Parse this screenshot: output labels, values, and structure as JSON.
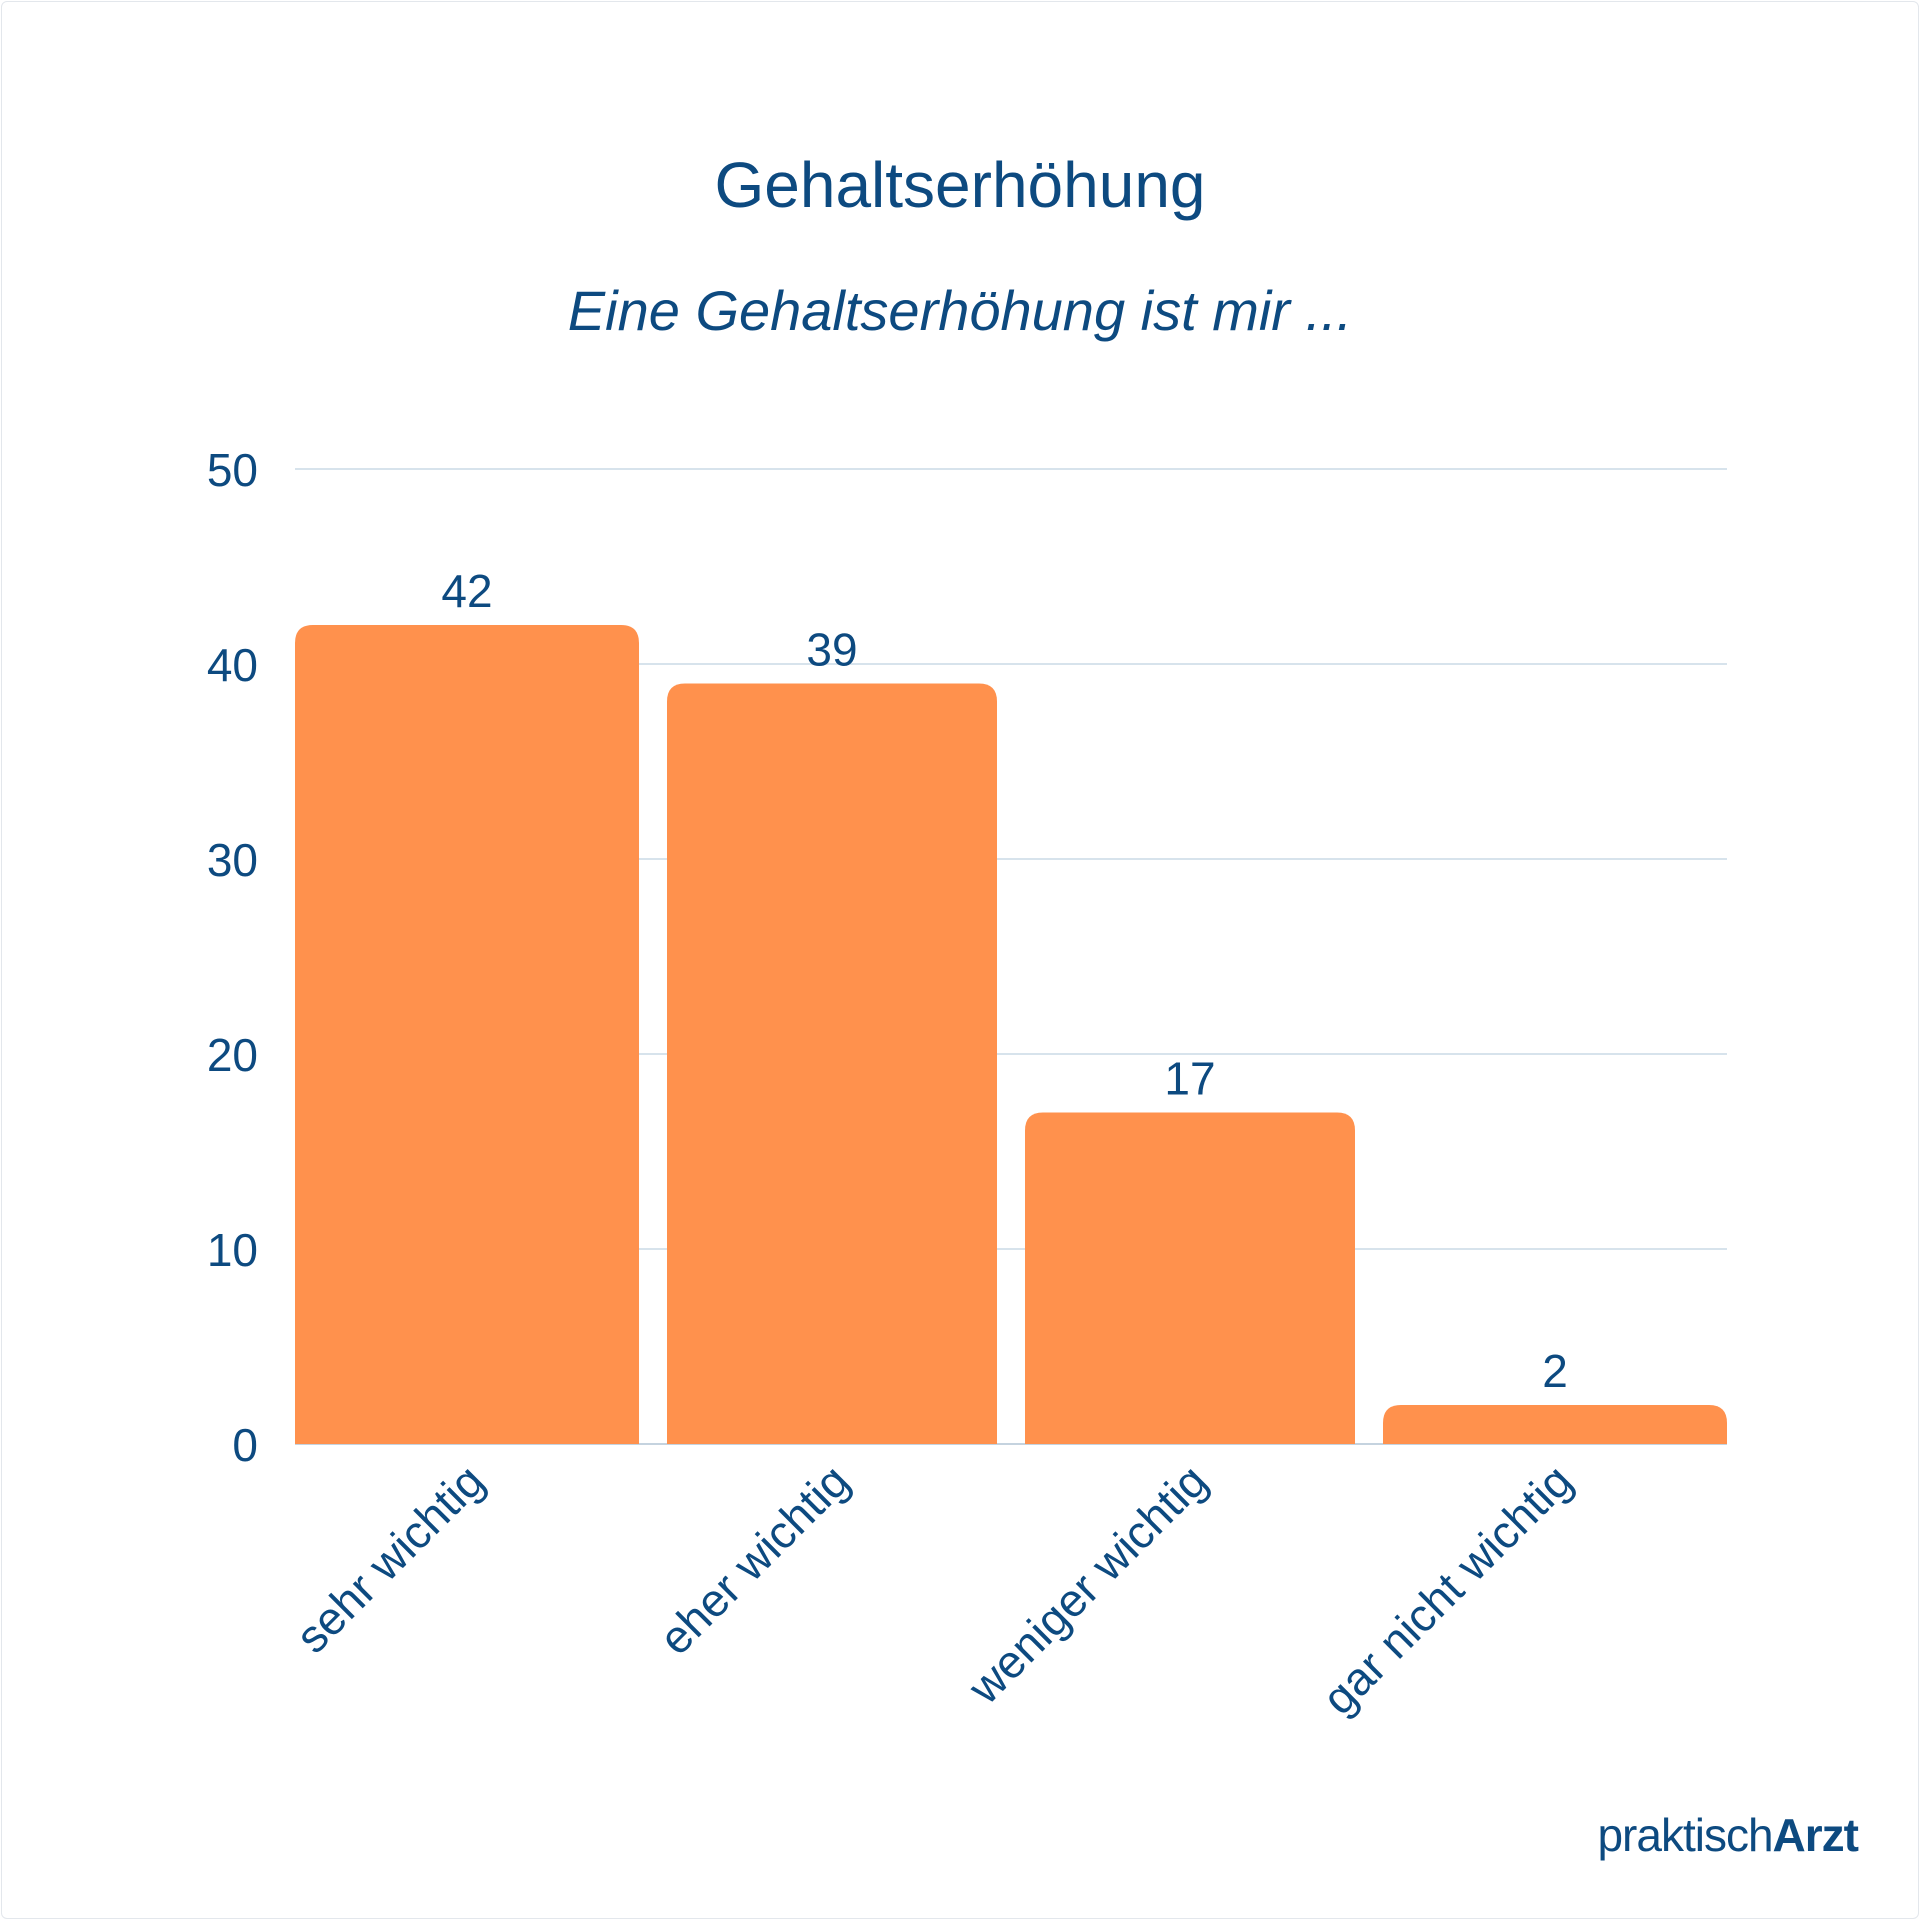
{
  "chart_data": {
    "type": "bar",
    "title": "Gehaltserhöhung",
    "subtitle": "Eine Gehaltserhöhung ist mir ...",
    "categories": [
      "sehr wichtig",
      "eher wichtig",
      "weniger wichtig",
      "gar nicht wichtig"
    ],
    "values": [
      42,
      39,
      17,
      2
    ],
    "data_labels": [
      "42",
      "39",
      "17",
      "2"
    ],
    "ylim": [
      0,
      50
    ],
    "yticks": [
      0,
      10,
      20,
      30,
      40,
      50
    ],
    "ytick_labels": [
      "0",
      "10",
      "20",
      "30",
      "40",
      "50"
    ],
    "grid": true,
    "bar_color": "#ff914d",
    "text_color": "#0d4a80",
    "grid_color": "#d7e3ec"
  },
  "brand": {
    "light": "praktisch",
    "bold": "Arzt"
  }
}
